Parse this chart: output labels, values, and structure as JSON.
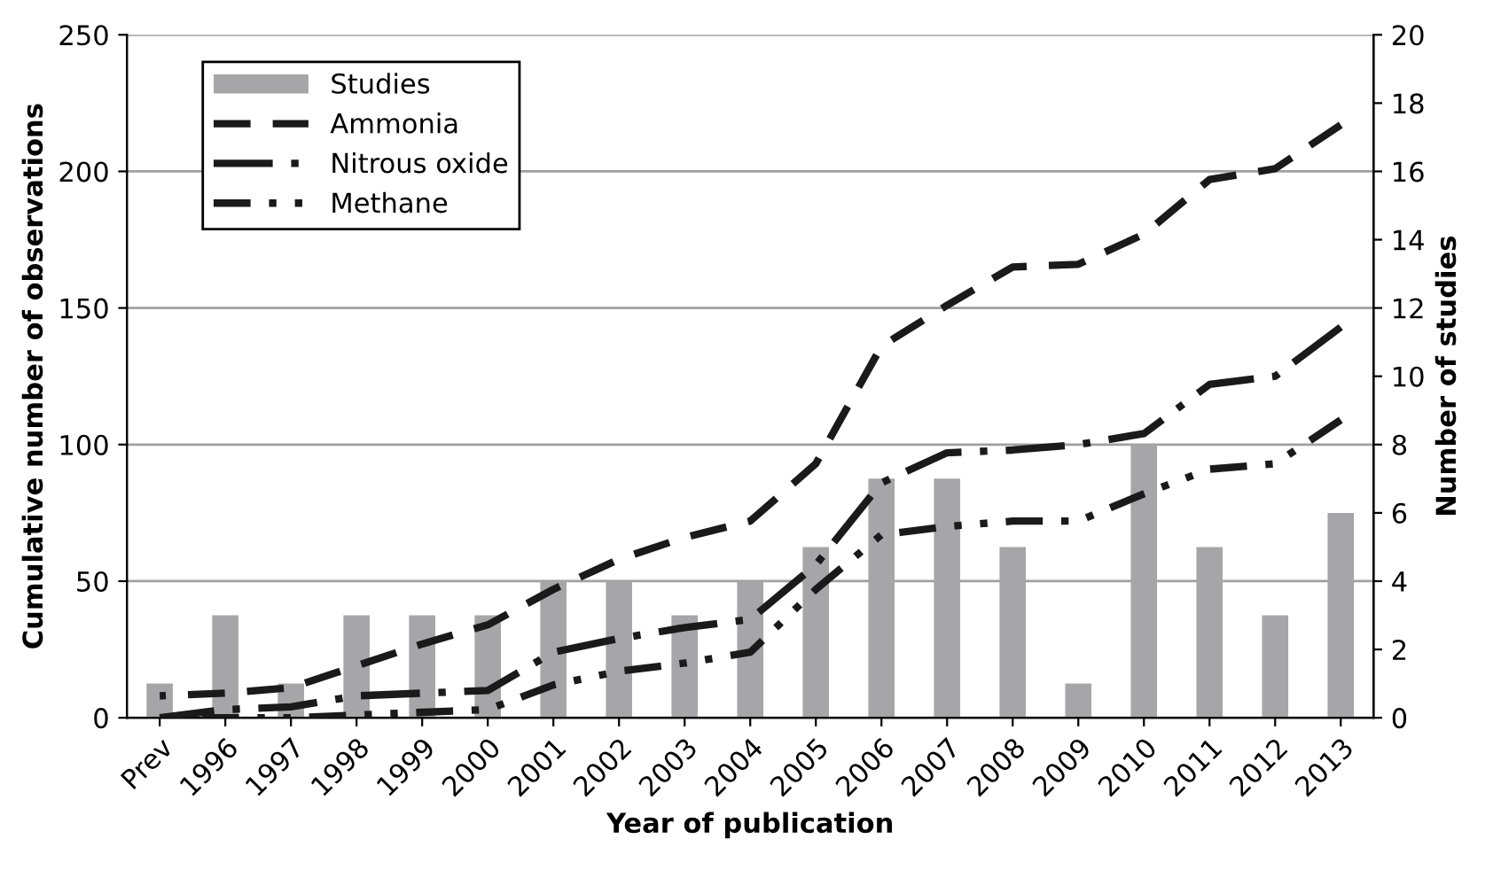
{
  "chart_data": {
    "type": "line",
    "xlabel": "Year of publication",
    "ylabel": "Cumulative number of observations",
    "y2label": "Number of studies",
    "categories": [
      "Prev",
      "1996",
      "1997",
      "1998",
      "1999",
      "2000",
      "2001",
      "2002",
      "2003",
      "2004",
      "2005",
      "2006",
      "2007",
      "2008",
      "2009",
      "2010",
      "2011",
      "2012",
      "2013"
    ],
    "series": [
      {
        "name": "Studies",
        "type": "bar",
        "axis": "y2",
        "color": "#a6a6a8",
        "values": [
          1,
          3,
          1,
          3,
          3,
          3,
          4,
          4,
          3,
          4,
          5,
          7,
          7,
          5,
          1,
          8,
          5,
          3,
          6
        ]
      },
      {
        "name": "Ammonia",
        "color": "#1a1a1a",
        "line_style": "dashed",
        "values": [
          8,
          9,
          11,
          19,
          27,
          34,
          47,
          58,
          66,
          72,
          93,
          136,
          151,
          165,
          166,
          177,
          197,
          201,
          217
        ]
      },
      {
        "name": "Nitrous oxide",
        "color": "#1a1a1a",
        "line_style": "dashdot",
        "values": [
          0,
          3,
          4,
          8,
          9,
          10,
          24,
          29,
          33,
          36,
          56,
          86,
          97,
          98,
          100,
          104,
          122,
          125,
          143
        ]
      },
      {
        "name": "Methane",
        "color": "#1a1a1a",
        "line_style": "dashdotdot",
        "values": [
          0,
          0,
          0,
          1,
          2,
          3,
          12,
          17,
          20,
          24,
          47,
          67,
          70,
          72,
          72,
          82,
          91,
          93,
          109
        ]
      }
    ],
    "ylim": [
      0,
      250
    ],
    "yticks": [
      0,
      50,
      100,
      150,
      200,
      250
    ],
    "y2lim": [
      0,
      20
    ],
    "y2ticks": [
      0,
      2,
      4,
      6,
      8,
      10,
      12,
      14,
      16,
      18,
      20
    ],
    "grid": "y",
    "legend": "top left"
  }
}
